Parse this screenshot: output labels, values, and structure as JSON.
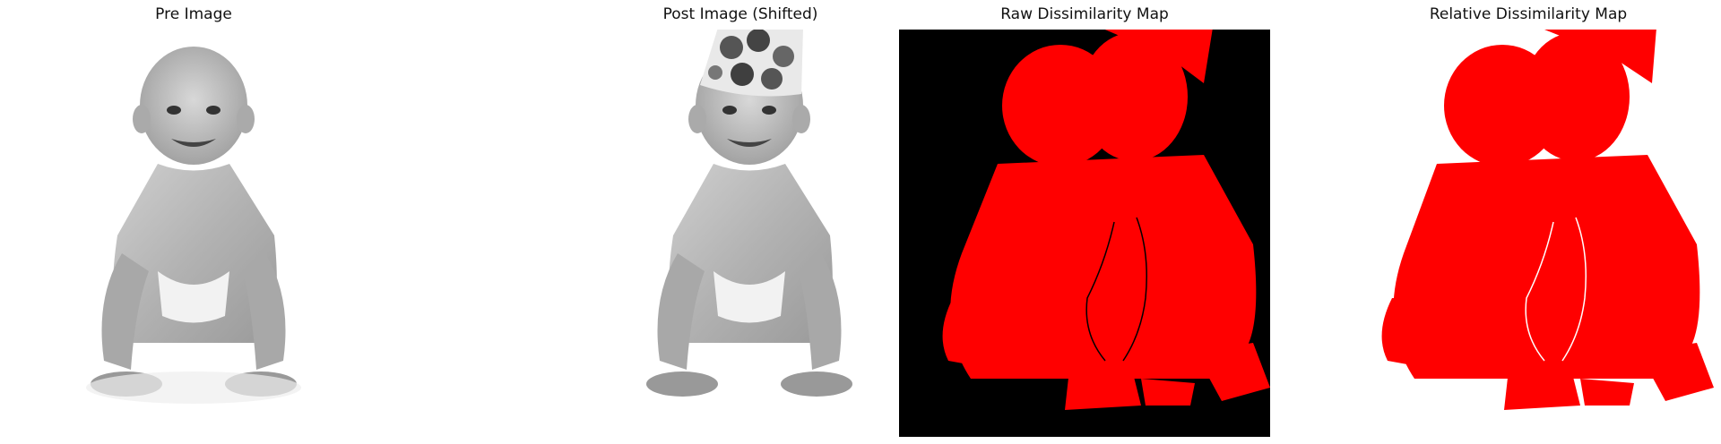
{
  "panels": [
    {
      "title": "Pre Image",
      "content": "grayscale-photo"
    },
    {
      "title": "Post Image (Shifted)",
      "content": "grayscale-photo-with-party-hat"
    },
    {
      "title": "Raw Dissimilarity Map",
      "content": "red-mask-on-black"
    },
    {
      "title": "Relative Dissimilarity Map",
      "content": "red-mask-on-white"
    }
  ],
  "colors": {
    "background": "#ffffff",
    "mask": "#ff0000",
    "raw_background": "#000000",
    "hat_base": "#e9e9e9",
    "hat_dots": "#555555"
  }
}
